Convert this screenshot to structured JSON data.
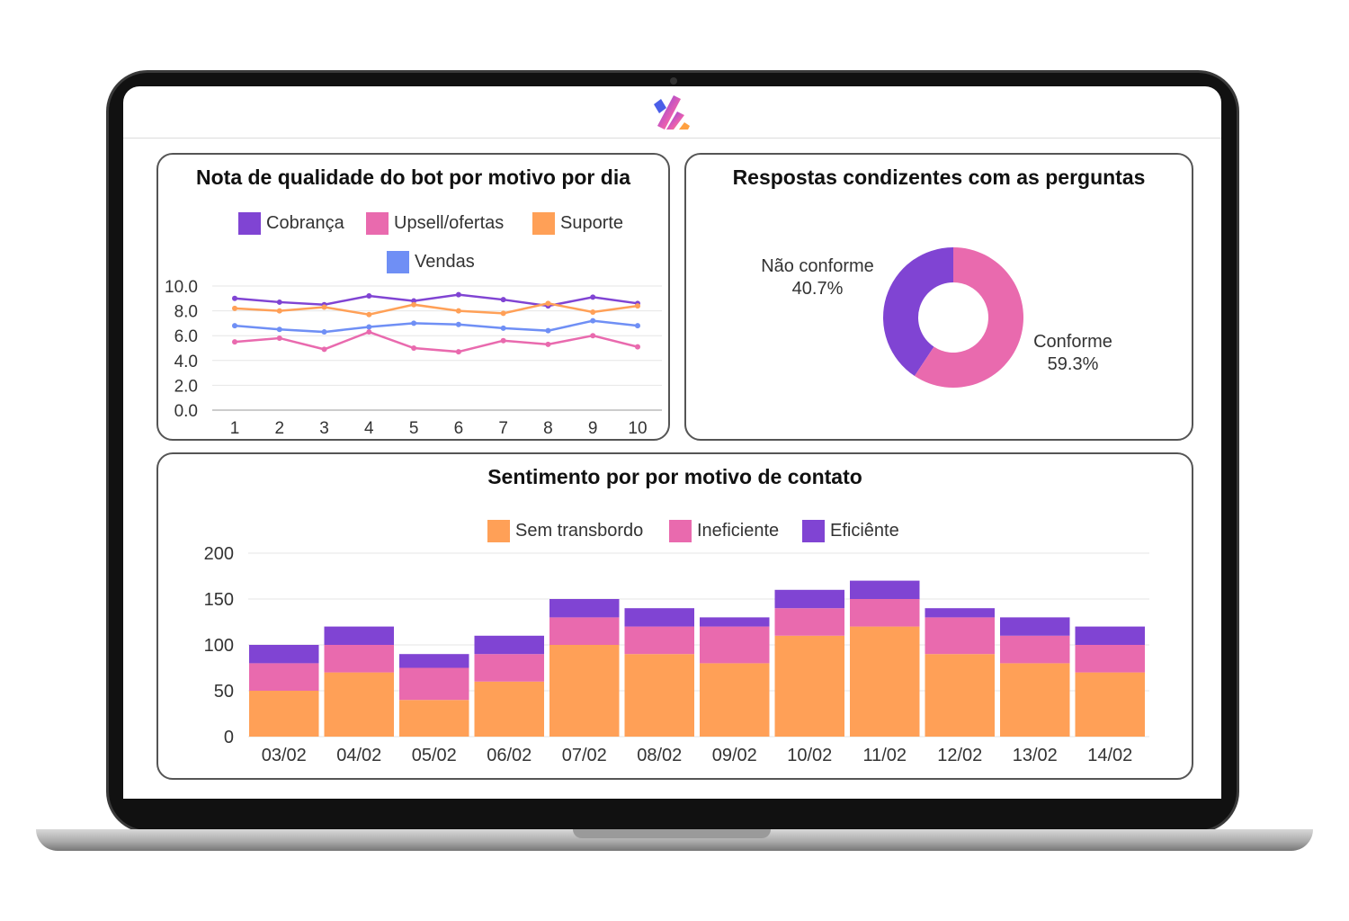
{
  "colors": {
    "purple": "#8044d3",
    "pink": "#e96aae",
    "orange": "#ffa057",
    "blue": "#6f8ff5"
  },
  "logo": "brand-logo",
  "chart_data": [
    {
      "type": "line",
      "title": "Nota de qualidade do bot por motivo por dia",
      "categories": [
        "1",
        "2",
        "3",
        "4",
        "5",
        "6",
        "7",
        "8",
        "9",
        "10"
      ],
      "ylim": [
        0,
        10
      ],
      "yticks": [
        "0.0",
        "2.0",
        "4.0",
        "6.0",
        "8.0",
        "10.0"
      ],
      "grid": true,
      "legend": "top",
      "series": [
        {
          "name": "Cobrança",
          "color": "#8044d3",
          "values": [
            9.0,
            8.7,
            8.5,
            9.2,
            8.8,
            9.3,
            8.9,
            8.4,
            9.1,
            8.6
          ]
        },
        {
          "name": "Upsell/ofertas",
          "color": "#e96aae",
          "values": [
            5.5,
            5.8,
            4.9,
            6.3,
            5.0,
            4.7,
            5.6,
            5.3,
            6.0,
            5.1
          ]
        },
        {
          "name": "Suporte",
          "color": "#ffa057",
          "values": [
            8.2,
            8.0,
            8.3,
            7.7,
            8.5,
            8.0,
            7.8,
            8.6,
            7.9,
            8.4
          ]
        },
        {
          "name": "Vendas",
          "color": "#6f8ff5",
          "values": [
            6.8,
            6.5,
            6.3,
            6.7,
            7.0,
            6.9,
            6.6,
            6.4,
            7.2,
            6.8
          ]
        }
      ]
    },
    {
      "type": "pie",
      "title": "Respostas condizentes com as perguntas",
      "donut": true,
      "slices": [
        {
          "label": "Não conforme",
          "value": 40.7,
          "text": "40.7%",
          "color": "#8044d3"
        },
        {
          "label": "Conforme",
          "value": 59.3,
          "text": "59.3%",
          "color": "#e96aae"
        }
      ]
    },
    {
      "type": "bar",
      "stacked": true,
      "title": "Sentimento por por motivo de contato",
      "categories": [
        "03/02",
        "04/02",
        "05/02",
        "06/02",
        "07/02",
        "08/02",
        "09/02",
        "10/02",
        "11/02",
        "12/02",
        "13/02",
        "14/02"
      ],
      "ylim": [
        0,
        200
      ],
      "yticks": [
        "0",
        "50",
        "100",
        "150",
        "200"
      ],
      "grid": true,
      "legend": "top",
      "series": [
        {
          "name": "Sem transbordo",
          "color": "#ffa057",
          "values": [
            50,
            70,
            40,
            60,
            100,
            90,
            80,
            110,
            120,
            90,
            80,
            70
          ]
        },
        {
          "name": "Ineficiente",
          "color": "#e96aae",
          "values": [
            30,
            30,
            35,
            30,
            30,
            30,
            40,
            30,
            30,
            40,
            30,
            30
          ]
        },
        {
          "name": "Eficiênte",
          "color": "#8044d3",
          "values": [
            20,
            20,
            15,
            20,
            20,
            20,
            10,
            20,
            20,
            10,
            20,
            20
          ]
        }
      ]
    }
  ]
}
